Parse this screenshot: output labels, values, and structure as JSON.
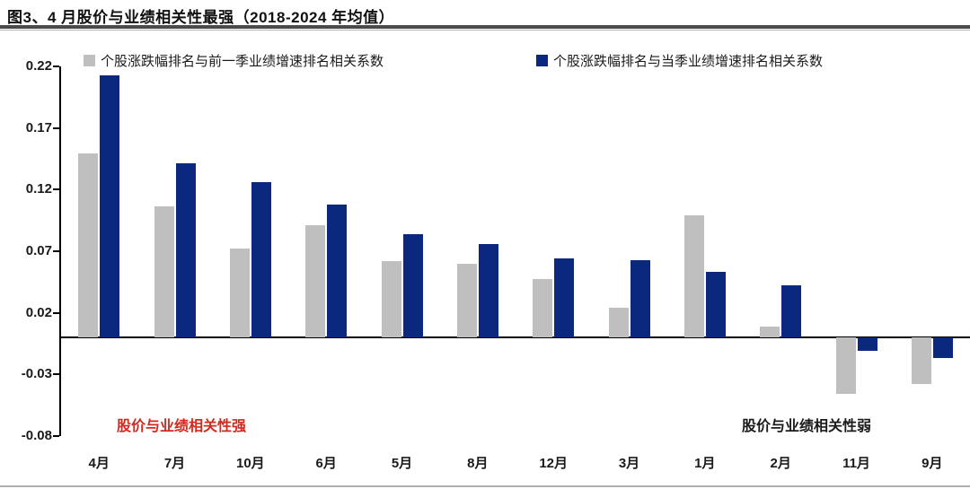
{
  "title": "图3、4 月股价与业绩相关性最强（2018-2024 年均值）",
  "annotations": {
    "strong": "股价与业绩相关性强",
    "weak": "股价与业绩相关性弱"
  },
  "colors": {
    "prev_quarter_bar": "#bfbfbf",
    "current_quarter_bar": "#09287e",
    "annotation_strong": "#d5281e",
    "annotation_weak": "#1a1a1a",
    "axis": "#000000"
  },
  "chart_data": {
    "type": "bar",
    "categories": [
      "4月",
      "7月",
      "10月",
      "6月",
      "5月",
      "8月",
      "12月",
      "3月",
      "1月",
      "2月",
      "11月",
      "9月"
    ],
    "series": [
      {
        "name": "个股涨跌幅排名与前一季业绩增速排名相关系数",
        "color": "#bfbfbf",
        "values": [
          0.149,
          0.106,
          0.072,
          0.091,
          0.062,
          0.06,
          0.047,
          0.024,
          0.099,
          0.009,
          -0.046,
          -0.038
        ]
      },
      {
        "name": "个股涨跌幅排名与当季业绩增速排名相关系数",
        "color": "#09287e",
        "values": [
          0.213,
          0.141,
          0.126,
          0.108,
          0.084,
          0.076,
          0.064,
          0.063,
          0.053,
          0.042,
          -0.011,
          -0.017
        ]
      }
    ],
    "yticks": [
      0.22,
      0.17,
      0.12,
      0.07,
      0.02,
      -0.03,
      -0.08
    ],
    "ylim": [
      -0.08,
      0.22
    ],
    "xlabel": "",
    "ylabel": "",
    "grid": false,
    "legend_position": "top"
  }
}
